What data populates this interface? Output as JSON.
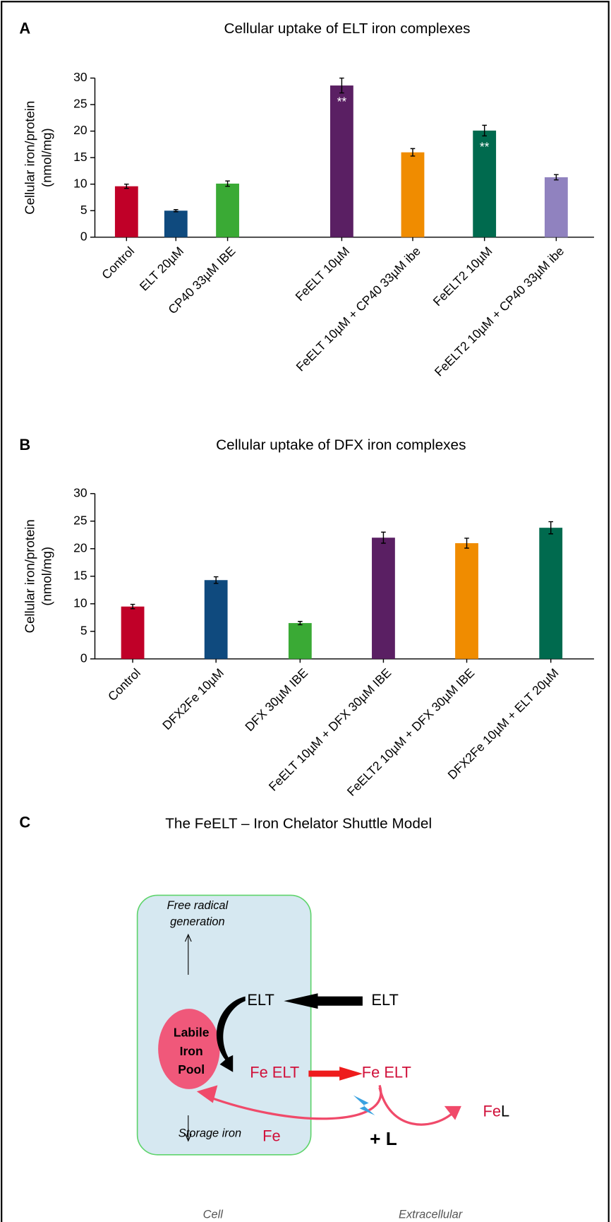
{
  "panel_labels": [
    "A",
    "B",
    "C"
  ],
  "chart_data": [
    {
      "type": "bar",
      "title": "Cellular uptake of ELT iron complexes",
      "ylabel": [
        "Cellular iron/protein",
        "(nmol/mg)"
      ],
      "categories": [
        "Control",
        "ELT 20µM",
        "CP40 33µM IBE",
        "FeELT 10µM",
        "FeELT 10µM + CP40 33µM ibe",
        "FeELT2 10µM",
        "FeELT2 10µM + CP40 33µM ibe"
      ],
      "values": [
        9.6,
        5.0,
        10.1,
        28.6,
        16.0,
        20.1,
        11.3
      ],
      "errors": [
        0.4,
        0.2,
        0.5,
        1.4,
        0.7,
        1.0,
        0.5
      ],
      "colors": [
        "#c00028",
        "#0f4a7e",
        "#3aaa35",
        "#5a1f63",
        "#f08c00",
        "#006a4e",
        "#9082bf"
      ],
      "annotations": [
        null,
        null,
        null,
        "**",
        null,
        "**",
        null
      ],
      "ylim": [
        0,
        30
      ],
      "yticks": [
        0,
        5,
        10,
        15,
        20,
        25,
        30
      ]
    },
    {
      "type": "bar",
      "title": "Cellular uptake of DFX iron complexes",
      "ylabel": [
        "Cellular iron/protein",
        "(nmol/mg)"
      ],
      "categories": [
        "Control",
        "DFX2Fe 10µM",
        "DFX 30µM IBE",
        "FeELT 10µM + DFX 30µM IBE",
        "FeELT2 10µM + DFX 30µM IBE",
        "DFX2Fe 10µM + ELT 20µM"
      ],
      "values": [
        9.5,
        14.3,
        6.5,
        22.0,
        21.0,
        23.8
      ],
      "errors": [
        0.4,
        0.6,
        0.3,
        1.0,
        0.9,
        1.1
      ],
      "colors": [
        "#c00028",
        "#0f4a7e",
        "#3aaa35",
        "#5a1f63",
        "#f08c00",
        "#006a4e"
      ],
      "annotations": [
        null,
        null,
        null,
        null,
        null,
        null
      ],
      "ylim": [
        0,
        30
      ],
      "yticks": [
        0,
        5,
        10,
        15,
        20,
        25,
        30
      ]
    }
  ],
  "diagram": {
    "title": "The FeELT – Iron Chelator Shuttle Model",
    "free_radical": [
      "Free radical",
      "generation"
    ],
    "pool": [
      "Labile",
      "Iron",
      "Pool"
    ],
    "storage": "Storage iron",
    "elt_in": "ELT",
    "elt_out": "ELT",
    "feelt_in": "Fe ELT",
    "feelt_out": "Fe ELT",
    "fe": "Fe",
    "plus_l": "+ L",
    "fel": [
      "Fe",
      "L"
    ],
    "cell": "Cell",
    "extracellular": "Extracellular"
  }
}
